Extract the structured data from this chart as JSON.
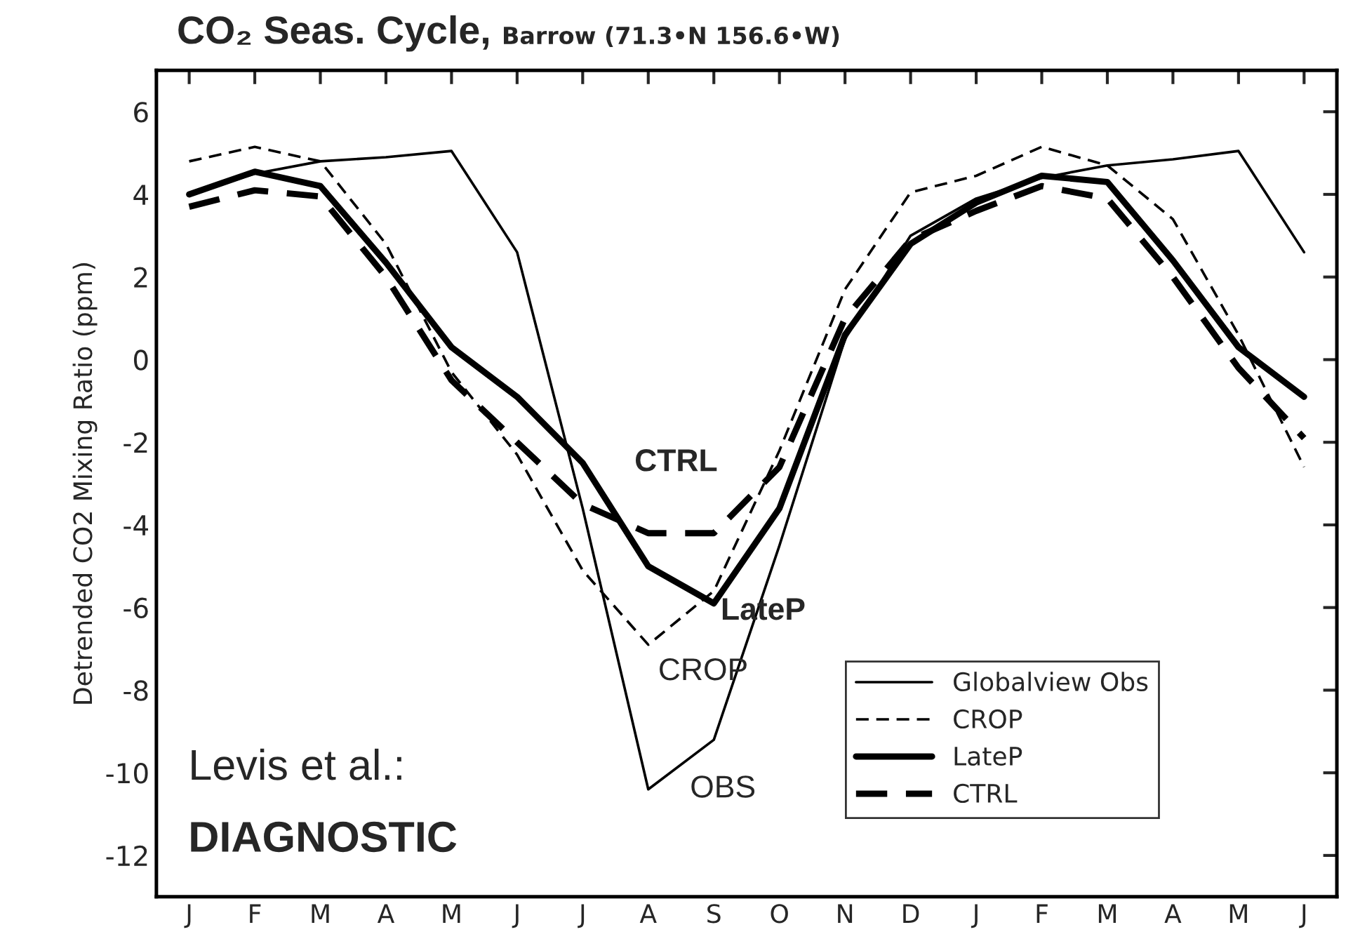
{
  "chart_data": {
    "type": "line",
    "title": "CO₂ Seas. Cycle,",
    "subtitle": "Barrow (71.3•N 156.6•W)",
    "ylabel": "Detrended CO2 Mixing Ratio (ppm)",
    "categories": [
      "J",
      "F",
      "M",
      "A",
      "M",
      "J",
      "J",
      "A",
      "S",
      "O",
      "N",
      "D",
      "J",
      "F",
      "M",
      "A",
      "M",
      "J"
    ],
    "ylim": [
      -13,
      7
    ],
    "yticks": [
      -12,
      -10,
      -8,
      -6,
      -4,
      -2,
      0,
      2,
      4,
      6
    ],
    "series": [
      {
        "name": "Globalview Obs",
        "color": "#000000",
        "line_style": "solid",
        "values": [
          4.0,
          4.5,
          4.8,
          4.9,
          5.05,
          2.6,
          -3.6,
          -10.4,
          -9.2,
          -4.5,
          0.5,
          3.0,
          3.9,
          4.4,
          4.7,
          4.85,
          5.05,
          2.6
        ]
      },
      {
        "name": "CROP",
        "color": "#000000",
        "line_style": "dashed",
        "values": [
          4.8,
          5.15,
          4.8,
          2.8,
          -0.3,
          -2.3,
          -5.1,
          -6.9,
          -5.6,
          -2.2,
          1.7,
          4.05,
          4.45,
          5.15,
          4.7,
          3.4,
          0.6,
          -2.6
        ]
      },
      {
        "name": "LateP",
        "color": "#000000",
        "line_style": "solid",
        "values": [
          4.0,
          4.55,
          4.2,
          2.35,
          0.3,
          -0.9,
          -2.5,
          -5.0,
          -5.9,
          -3.6,
          0.6,
          2.8,
          3.8,
          4.45,
          4.3,
          2.4,
          0.3,
          -0.9
        ]
      },
      {
        "name": "CTRL",
        "color": "#000000",
        "line_style": "dashed",
        "values": [
          3.7,
          4.1,
          3.95,
          2.0,
          -0.5,
          -2.0,
          -3.5,
          -4.2,
          -4.2,
          -2.6,
          1.0,
          2.9,
          3.6,
          4.2,
          3.9,
          2.0,
          -0.2,
          -1.9
        ]
      }
    ],
    "annotations": [
      "CTRL",
      "LateP",
      "CROP",
      "OBS",
      "Levis et al.:",
      "DIAGNOSTIC"
    ],
    "legend": "bottom right",
    "grid": false
  }
}
